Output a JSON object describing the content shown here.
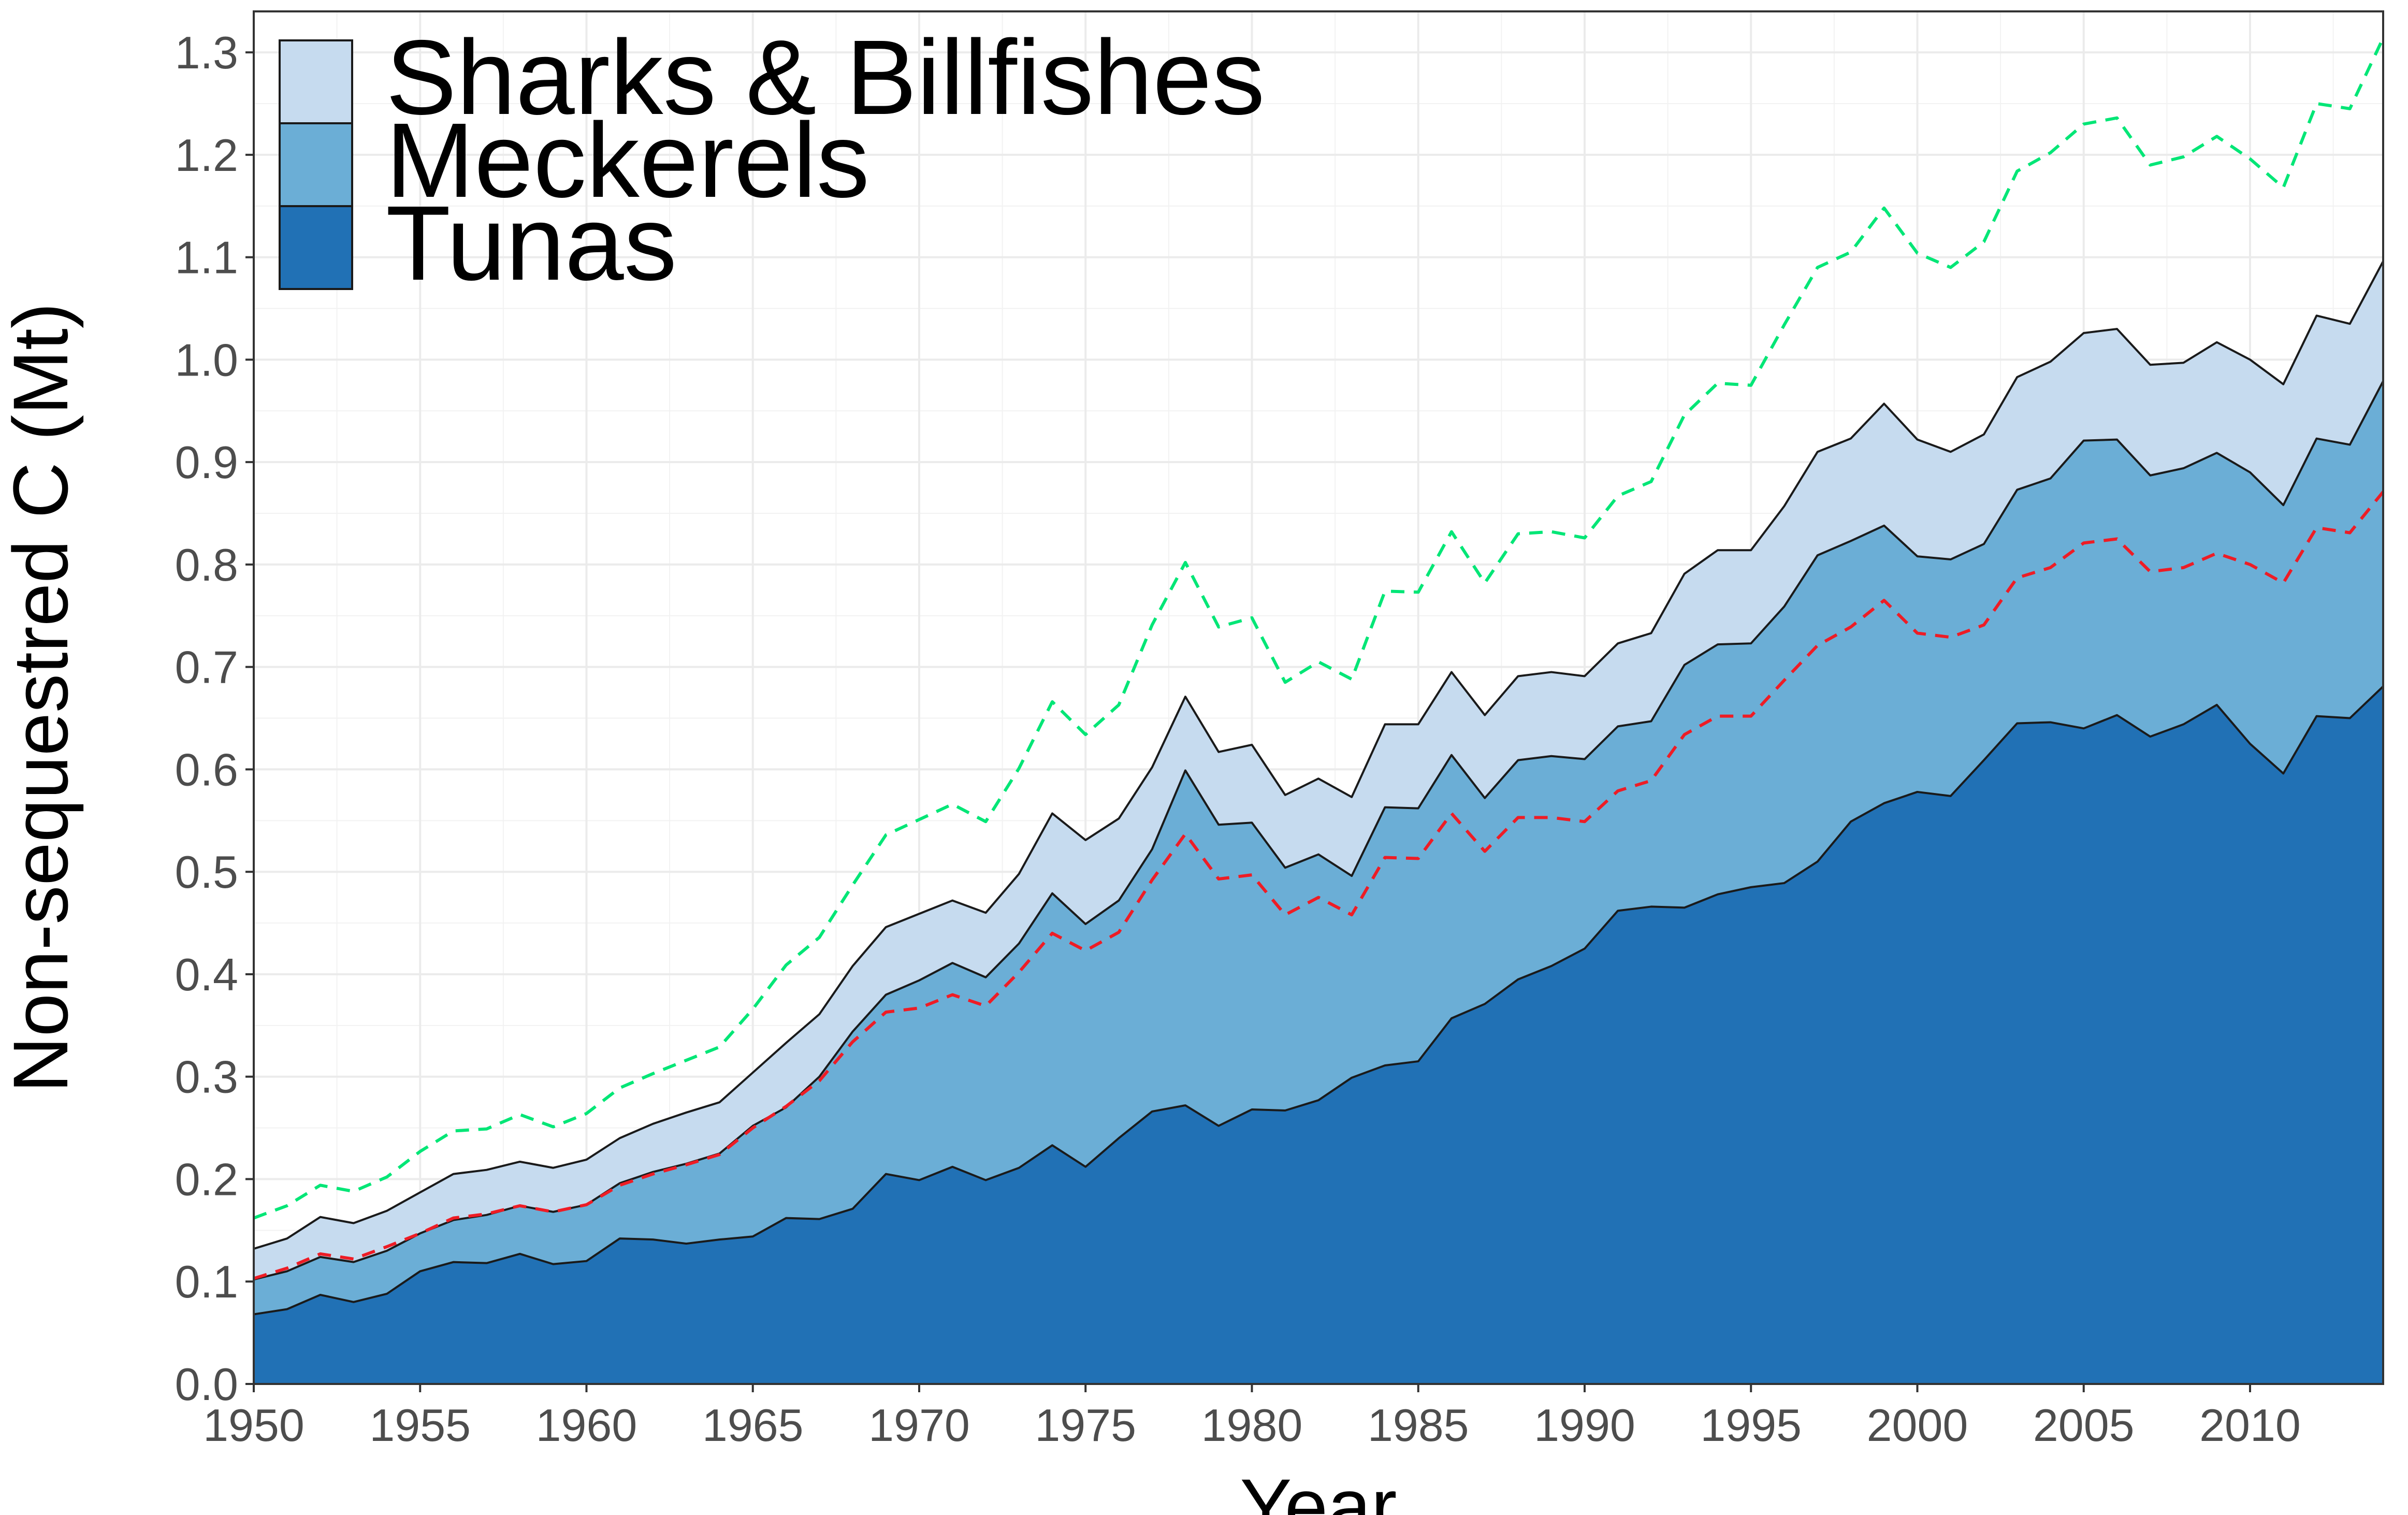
{
  "chart_data": {
    "type": "area",
    "stacked": true,
    "xlabel": "Year",
    "ylabel": "Non-sequestred C (Mt)",
    "xlim": [
      1950,
      2014
    ],
    "ylim": [
      0,
      1.34
    ],
    "x_ticks": [
      "1950",
      "1955",
      "1960",
      "1965",
      "1970",
      "1975",
      "1980",
      "1985",
      "1990",
      "1995",
      "2000",
      "2005",
      "2010"
    ],
    "y_ticks": [
      "0.0",
      "0.1",
      "0.2",
      "0.3",
      "0.4",
      "0.5",
      "0.6",
      "0.7",
      "0.8",
      "0.9",
      "1.0",
      "1.1",
      "1.2",
      "1.3"
    ],
    "grid": true,
    "legend_position": "top-left",
    "x": [
      1950,
      1951,
      1952,
      1953,
      1954,
      1955,
      1956,
      1957,
      1958,
      1959,
      1960,
      1961,
      1962,
      1963,
      1964,
      1965,
      1966,
      1967,
      1968,
      1969,
      1970,
      1971,
      1972,
      1973,
      1974,
      1975,
      1976,
      1977,
      1978,
      1979,
      1980,
      1981,
      1982,
      1983,
      1984,
      1985,
      1986,
      1987,
      1988,
      1989,
      1990,
      1991,
      1992,
      1993,
      1994,
      1995,
      1996,
      1997,
      1998,
      1999,
      2000,
      2001,
      2002,
      2003,
      2004,
      2005,
      2006,
      2007,
      2008,
      2009,
      2010,
      2011,
      2012,
      2013,
      2014
    ],
    "series": [
      {
        "name": "Tunas",
        "color": "#2171b5",
        "values": [
          0.068,
          0.073,
          0.087,
          0.08,
          0.088,
          0.11,
          0.119,
          0.118,
          0.127,
          0.117,
          0.12,
          0.142,
          0.141,
          0.137,
          0.141,
          0.144,
          0.162,
          0.161,
          0.171,
          0.205,
          0.199,
          0.212,
          0.199,
          0.211,
          0.233,
          0.212,
          0.24,
          0.266,
          0.272,
          0.252,
          0.268,
          0.267,
          0.277,
          0.299,
          0.311,
          0.315,
          0.357,
          0.371,
          0.395,
          0.408,
          0.425,
          0.462,
          0.466,
          0.465,
          0.478,
          0.485,
          0.489,
          0.51,
          0.549,
          0.567,
          0.578,
          0.574,
          0.609,
          0.645,
          0.646,
          0.64,
          0.653,
          0.632,
          0.644,
          0.663,
          0.625,
          0.596,
          0.652,
          0.65,
          0.681
        ]
      },
      {
        "name": "Meckerels",
        "color": "#6baed6",
        "values": [
          0.034,
          0.037,
          0.037,
          0.039,
          0.042,
          0.037,
          0.041,
          0.047,
          0.047,
          0.051,
          0.055,
          0.054,
          0.066,
          0.078,
          0.084,
          0.108,
          0.108,
          0.139,
          0.173,
          0.175,
          0.195,
          0.199,
          0.198,
          0.219,
          0.246,
          0.237,
          0.232,
          0.256,
          0.327,
          0.294,
          0.28,
          0.237,
          0.24,
          0.197,
          0.252,
          0.247,
          0.257,
          0.201,
          0.214,
          0.205,
          0.185,
          0.18,
          0.181,
          0.237,
          0.244,
          0.238,
          0.27,
          0.299,
          0.274,
          0.271,
          0.23,
          0.231,
          0.211,
          0.228,
          0.238,
          0.281,
          0.269,
          0.255,
          0.25,
          0.246,
          0.265,
          0.262,
          0.271,
          0.267,
          0.298
        ]
      },
      {
        "name": "Sharks & Billfishes",
        "color": "#c6dbef",
        "values": [
          0.03,
          0.032,
          0.039,
          0.038,
          0.039,
          0.04,
          0.045,
          0.044,
          0.043,
          0.043,
          0.044,
          0.044,
          0.047,
          0.05,
          0.05,
          0.052,
          0.063,
          0.061,
          0.064,
          0.066,
          0.065,
          0.061,
          0.063,
          0.068,
          0.078,
          0.082,
          0.08,
          0.08,
          0.072,
          0.071,
          0.076,
          0.071,
          0.074,
          0.077,
          0.081,
          0.082,
          0.081,
          0.081,
          0.082,
          0.082,
          0.081,
          0.081,
          0.086,
          0.089,
          0.092,
          0.091,
          0.098,
          0.101,
          0.1,
          0.119,
          0.114,
          0.105,
          0.107,
          0.11,
          0.114,
          0.105,
          0.108,
          0.108,
          0.103,
          0.108,
          0.11,
          0.118,
          0.12,
          0.118,
          0.117
        ]
      }
    ],
    "lines": [
      {
        "style": "dashed",
        "color": "#00e676",
        "values": [
          0.162,
          0.174,
          0.194,
          0.188,
          0.202,
          0.227,
          0.247,
          0.249,
          0.263,
          0.251,
          0.264,
          0.289,
          0.303,
          0.316,
          0.329,
          0.366,
          0.409,
          0.436,
          0.487,
          0.536,
          0.551,
          0.566,
          0.549,
          0.601,
          0.666,
          0.634,
          0.663,
          0.741,
          0.802,
          0.739,
          0.748,
          0.685,
          0.705,
          0.688,
          0.774,
          0.773,
          0.832,
          0.782,
          0.83,
          0.832,
          0.826,
          0.867,
          0.881,
          0.946,
          0.977,
          0.975,
          1.034,
          1.09,
          1.105,
          1.148,
          1.104,
          1.09,
          1.115,
          1.184,
          1.202,
          1.23,
          1.236,
          1.19,
          1.198,
          1.218,
          1.196,
          1.168,
          1.25,
          1.245,
          1.314
        ]
      },
      {
        "style": "dashed",
        "color": "#ee1c25",
        "values": [
          0.103,
          0.113,
          0.127,
          0.122,
          0.134,
          0.147,
          0.162,
          0.166,
          0.174,
          0.168,
          0.175,
          0.194,
          0.205,
          0.214,
          0.224,
          0.25,
          0.271,
          0.296,
          0.334,
          0.363,
          0.367,
          0.38,
          0.369,
          0.402,
          0.44,
          0.423,
          0.441,
          0.492,
          0.537,
          0.493,
          0.497,
          0.458,
          0.475,
          0.458,
          0.514,
          0.513,
          0.557,
          0.52,
          0.553,
          0.553,
          0.549,
          0.579,
          0.589,
          0.634,
          0.652,
          0.652,
          0.687,
          0.721,
          0.739,
          0.765,
          0.733,
          0.729,
          0.741,
          0.787,
          0.797,
          0.821,
          0.825,
          0.793,
          0.797,
          0.811,
          0.8,
          0.782,
          0.836,
          0.831,
          0.871
        ]
      }
    ]
  }
}
